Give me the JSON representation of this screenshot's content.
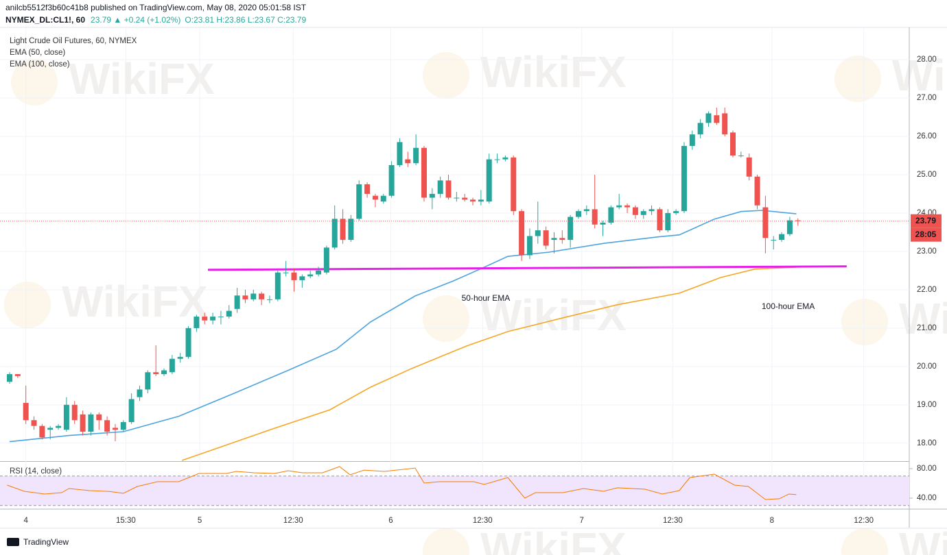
{
  "header": {
    "publisher": "anilcb5512f3b60c41b8 published on TradingView.com, May 08, 2020 05:01:58 IST",
    "symbol": "NYMEX_DL:CL1!, 60",
    "change": "23.79 ▲ +0.24 (+1.02%)",
    "ohlc": "O:23.81 H:23.86 L:23.67 C:23.79"
  },
  "watermark": "WikiFX",
  "footer": "TradingView",
  "chart_data": [
    {
      "type": "candlestick",
      "title": "Light Crude Oil Futures, 60, NYMEX",
      "open": [
        19.6,
        19.8,
        19.05,
        18.6,
        18.45,
        18.35,
        18.4,
        18.35,
        19.0,
        18.75,
        18.3,
        18.75,
        18.6,
        18.4,
        18.35,
        18.55,
        19.2,
        19.4,
        19.85,
        19.8,
        19.85,
        20.2,
        20.25,
        21.0,
        21.3,
        21.2,
        21.3,
        21.3,
        21.5,
        21.85,
        21.75,
        21.9,
        21.75,
        21.75,
        22.45,
        22.45,
        22.25,
        22.35,
        22.4,
        22.45,
        23.1,
        23.85,
        23.3,
        23.85,
        24.75,
        24.45,
        24.3,
        24.45,
        25.25,
        25.4,
        25.3,
        25.7,
        24.4,
        24.5,
        24.85,
        24.4,
        24.4,
        24.35,
        24.3,
        24.3,
        25.4,
        25.4,
        25.45,
        24.05,
        22.9,
        23.4,
        23.55,
        23.3,
        23.35,
        23.3,
        23.9,
        24.05,
        24.1,
        23.7,
        23.75,
        24.15,
        24.2,
        24.15,
        23.95,
        24.05,
        24.1,
        23.55,
        24.0,
        24.05,
        25.75,
        26.05,
        26.35,
        26.55,
        26.6,
        26.1,
        25.5,
        25.45,
        24.95,
        24.15,
        23.3,
        23.3,
        23.45,
        23.81
      ],
      "high": [
        19.85,
        19.8,
        19.5,
        18.7,
        18.5,
        18.45,
        18.5,
        19.2,
        19.1,
        18.85,
        18.8,
        18.8,
        18.7,
        18.5,
        18.6,
        19.3,
        19.5,
        19.9,
        20.55,
        19.95,
        20.3,
        20.35,
        21.05,
        21.35,
        21.4,
        21.4,
        21.45,
        21.6,
        22.05,
        22.0,
        22.0,
        21.95,
        21.85,
        22.5,
        22.75,
        22.55,
        22.4,
        22.5,
        22.6,
        23.15,
        24.2,
        24.1,
        23.95,
        24.85,
        24.8,
        24.5,
        24.5,
        25.35,
        25.95,
        25.6,
        26.05,
        25.75,
        24.65,
        24.95,
        25.0,
        24.55,
        24.5,
        24.4,
        24.6,
        25.55,
        25.55,
        25.5,
        25.5,
        24.1,
        23.6,
        24.3,
        23.65,
        23.5,
        23.55,
        23.95,
        24.1,
        24.2,
        25.0,
        23.8,
        24.2,
        24.5,
        24.25,
        24.2,
        24.1,
        24.2,
        24.15,
        24.1,
        24.1,
        25.85,
        26.15,
        26.45,
        26.65,
        26.75,
        26.75,
        26.15,
        25.6,
        25.55,
        25.0,
        24.45,
        23.4,
        23.5,
        23.9,
        23.86
      ],
      "low": [
        19.55,
        19.7,
        18.5,
        18.35,
        18.1,
        18.1,
        18.35,
        18.3,
        18.5,
        18.2,
        18.2,
        18.35,
        18.2,
        18.05,
        18.3,
        18.5,
        19.1,
        19.3,
        19.75,
        19.75,
        19.8,
        20.1,
        20.2,
        20.9,
        21.1,
        21.1,
        21.1,
        21.25,
        21.4,
        21.65,
        21.7,
        21.6,
        21.65,
        21.7,
        22.35,
        21.95,
        22.05,
        22.3,
        22.35,
        22.4,
        23.05,
        23.2,
        23.25,
        23.8,
        24.4,
        24.15,
        24.25,
        24.4,
        25.2,
        25.2,
        25.25,
        24.3,
        24.1,
        24.4,
        24.35,
        24.3,
        24.3,
        24.2,
        24.2,
        24.25,
        25.3,
        25.35,
        23.95,
        22.75,
        22.8,
        23.2,
        23.05,
        22.95,
        23.2,
        23.1,
        23.85,
        23.95,
        23.6,
        23.4,
        23.7,
        24.1,
        24.0,
        23.85,
        23.85,
        23.95,
        23.5,
        23.5,
        23.95,
        24.0,
        25.65,
        25.95,
        26.25,
        26.3,
        26.0,
        25.45,
        25.45,
        24.85,
        24.1,
        22.95,
        23.05,
        23.25,
        23.4,
        23.67
      ],
      "close": [
        19.8,
        19.75,
        18.6,
        18.45,
        18.15,
        18.4,
        18.45,
        19.0,
        18.6,
        18.3,
        18.75,
        18.6,
        18.3,
        18.35,
        18.55,
        19.15,
        19.4,
        19.85,
        19.8,
        19.9,
        20.2,
        20.25,
        21.0,
        21.3,
        21.2,
        21.3,
        21.3,
        21.45,
        21.85,
        21.75,
        21.9,
        21.75,
        21.75,
        22.45,
        22.45,
        22.25,
        22.35,
        22.4,
        22.5,
        23.1,
        23.85,
        23.3,
        23.85,
        24.75,
        24.5,
        24.35,
        24.45,
        25.25,
        25.85,
        25.3,
        25.7,
        24.4,
        24.5,
        24.85,
        24.4,
        24.4,
        24.35,
        24.3,
        24.35,
        25.4,
        25.4,
        25.45,
        24.05,
        22.9,
        23.4,
        23.55,
        23.15,
        23.35,
        23.3,
        23.9,
        24.05,
        24.1,
        23.7,
        23.75,
        24.15,
        24.2,
        24.15,
        23.95,
        24.05,
        24.1,
        23.55,
        24.0,
        24.05,
        25.75,
        26.05,
        26.35,
        26.6,
        26.35,
        26.05,
        25.5,
        25.5,
        24.95,
        24.2,
        23.35,
        23.3,
        23.45,
        23.81,
        23.79
      ],
      "up_color": "#26a69a",
      "down_color": "#ef5350",
      "xlim": [
        -0.76,
        110.7
      ],
      "ylim": [
        17.55,
        28.84
      ],
      "yticks": [
        {
          "value": 18,
          "label": "18.00"
        },
        {
          "value": 19,
          "label": "19.00"
        },
        {
          "value": 20,
          "label": "20.00"
        },
        {
          "value": 21,
          "label": "21.00"
        },
        {
          "value": 22,
          "label": "22.00"
        },
        {
          "value": 23,
          "label": "23.00"
        },
        {
          "value": 24,
          "label": "24.00"
        },
        {
          "value": 25,
          "label": "25.00"
        },
        {
          "value": 26,
          "label": "26.00"
        },
        {
          "value": 27,
          "label": "27.00"
        },
        {
          "value": 28,
          "label": "28.00"
        }
      ],
      "series": [
        {
          "name": "EMA (50, close)",
          "annotation": "50-hour EMA",
          "color": "#4aa3df",
          "x": [
            0,
            7.3,
            14.0,
            20.8,
            27.5,
            34.3,
            40.2,
            44.4,
            49.9,
            54.6,
            57.9,
            61.3,
            66.4,
            73.1,
            79.9,
            82.4,
            86.7,
            90.0,
            92.6,
            96.8
          ],
          "values": [
            18.04,
            18.2,
            18.3,
            18.7,
            19.29,
            19.9,
            20.45,
            21.16,
            21.84,
            22.23,
            22.54,
            22.87,
            22.98,
            23.21,
            23.38,
            23.43,
            23.84,
            24.04,
            24.07,
            23.98
          ]
        },
        {
          "name": "EMA (100, close)",
          "annotation": "100-hour EMA",
          "color": "#f5a623",
          "x": [
            21.2,
            32.6,
            39.4,
            44.4,
            49.5,
            56.3,
            61.3,
            68.1,
            74.8,
            82.4,
            87.5,
            91.7,
            96.8
          ],
          "values": [
            17.55,
            18.39,
            18.87,
            19.46,
            19.95,
            20.54,
            20.91,
            21.27,
            21.61,
            21.91,
            22.32,
            22.54,
            22.59
          ]
        }
      ],
      "support": {
        "color": "#e620e6",
        "x": [
          24.4,
          103.0
        ],
        "values": [
          22.52,
          22.61
        ]
      },
      "countdown": "28:05",
      "grid": true
    },
    {
      "type": "line",
      "title": "RSI (14, close)",
      "color": "#f57c00",
      "x": [
        -0.3,
        1.8,
        4.3,
        6.4,
        7.3,
        9.8,
        12.3,
        14.0,
        15.7,
        18.2,
        20.8,
        23.3,
        26.7,
        27.9,
        30.1,
        32.6,
        34.3,
        36.0,
        38.5,
        40.6,
        41.9,
        43.6,
        46.1,
        49.9,
        51.0,
        52.9,
        57.1,
        58.4,
        61.3,
        63.4,
        64.7,
        68.1,
        70.6,
        73.1,
        74.8,
        78.2,
        80.3,
        82.4,
        83.7,
        86.7,
        89.2,
        90.9,
        93.0,
        94.7,
        95.9,
        96.8
      ],
      "values": [
        57.7,
        49.3,
        45.6,
        47.4,
        53,
        50.2,
        49,
        46.5,
        55.8,
        62.3,
        62.3,
        73.5,
        73.5,
        76.3,
        74.4,
        73.5,
        77.2,
        74.4,
        74.4,
        82.8,
        71.6,
        78.1,
        76.3,
        80.9,
        60.5,
        62.3,
        62.3,
        58.6,
        67.9,
        40,
        47.4,
        47.4,
        53,
        49.3,
        54,
        52.1,
        45.6,
        50.2,
        67.9,
        72.6,
        57.7,
        55.8,
        38.1,
        39.1,
        45.6,
        44.7
      ],
      "ylim": [
        26,
        88.4
      ],
      "yticks": [
        {
          "value": 80,
          "label": "80.00"
        },
        {
          "value": 40,
          "label": "40.00"
        }
      ],
      "band": [
        30,
        70
      ],
      "band_color": "#f1e4fd",
      "xlim": [
        -0.76,
        110.7
      ],
      "xticks": [
        {
          "value": 2,
          "label": "4"
        },
        {
          "value": 14.3,
          "label": "15:30"
        },
        {
          "value": 23.4,
          "label": "5"
        },
        {
          "value": 34.9,
          "label": "12:30"
        },
        {
          "value": 46.9,
          "label": "6"
        },
        {
          "value": 58.2,
          "label": "12:30"
        },
        {
          "value": 70.4,
          "label": "7"
        },
        {
          "value": 81.6,
          "label": "12:30"
        },
        {
          "value": 93.8,
          "label": "8"
        },
        {
          "value": 105.1,
          "label": "12:30"
        }
      ]
    }
  ]
}
